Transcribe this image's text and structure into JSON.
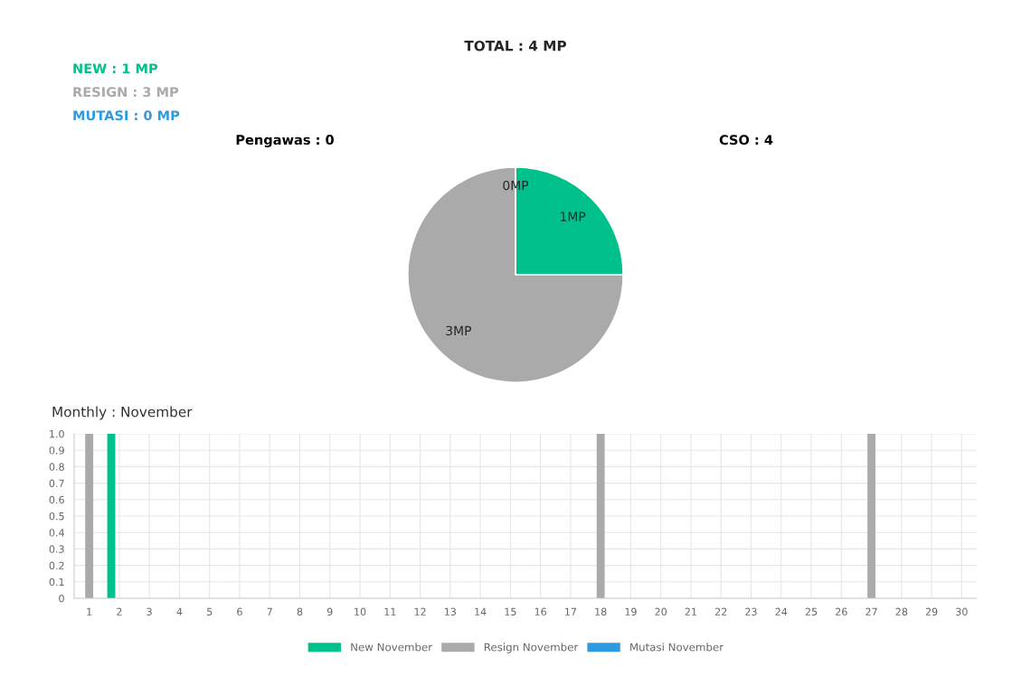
{
  "chart_data": [
    {
      "type": "pie",
      "title": "TOTAL : 4 MP",
      "categories": [
        null,
        null,
        null
      ],
      "values": [
        1,
        3,
        0
      ],
      "colors": [
        "#00c08b",
        "#aaaaaa",
        "#2e9ae0"
      ],
      "value_labels": [
        "1MP",
        "3MP",
        "0MP"
      ],
      "annotations": [
        "NEW : 1 MP",
        "RESIGN : 3 MP",
        "MUTASI : 0 MP",
        "Pengawas : 0",
        "CSO : 4"
      ]
    },
    {
      "type": "bar",
      "title": "Monthly : November",
      "categories": [
        "1",
        "2",
        "3",
        "4",
        "5",
        "6",
        "7",
        "8",
        "9",
        "10",
        "11",
        "12",
        "13",
        "14",
        "15",
        "16",
        "17",
        "18",
        "19",
        "20",
        "21",
        "22",
        "23",
        "24",
        "25",
        "26",
        "27",
        "28",
        "29",
        "30"
      ],
      "series": [
        {
          "name": "New November",
          "color": "#00c08b",
          "values": [
            0,
            1,
            0,
            0,
            0,
            0,
            0,
            0,
            0,
            0,
            0,
            0,
            0,
            0,
            0,
            0,
            0,
            0,
            0,
            0,
            0,
            0,
            0,
            0,
            0,
            0,
            0,
            0,
            0,
            0
          ]
        },
        {
          "name": "Resign November",
          "color": "#aaaaaa",
          "values": [
            1,
            0,
            0,
            0,
            0,
            0,
            0,
            0,
            0,
            0,
            0,
            0,
            0,
            0,
            0,
            0,
            0,
            1,
            0,
            0,
            0,
            0,
            0,
            0,
            0,
            0,
            1,
            0,
            0,
            0
          ]
        },
        {
          "name": "Mutasi November",
          "color": "#2e9ae0",
          "values": [
            0,
            0,
            0,
            0,
            0,
            0,
            0,
            0,
            0,
            0,
            0,
            0,
            0,
            0,
            0,
            0,
            0,
            0,
            0,
            0,
            0,
            0,
            0,
            0,
            0,
            0,
            0,
            0,
            0,
            0
          ]
        }
      ],
      "ylim": [
        0,
        1
      ],
      "yticks": [
        0,
        0.1,
        0.2,
        0.3,
        0.4,
        0.5,
        0.6,
        0.7,
        0.8,
        0.9,
        {
          "value": 1,
          "label": "1.0"
        }
      ],
      "grid": true,
      "legend": "bottom"
    }
  ]
}
